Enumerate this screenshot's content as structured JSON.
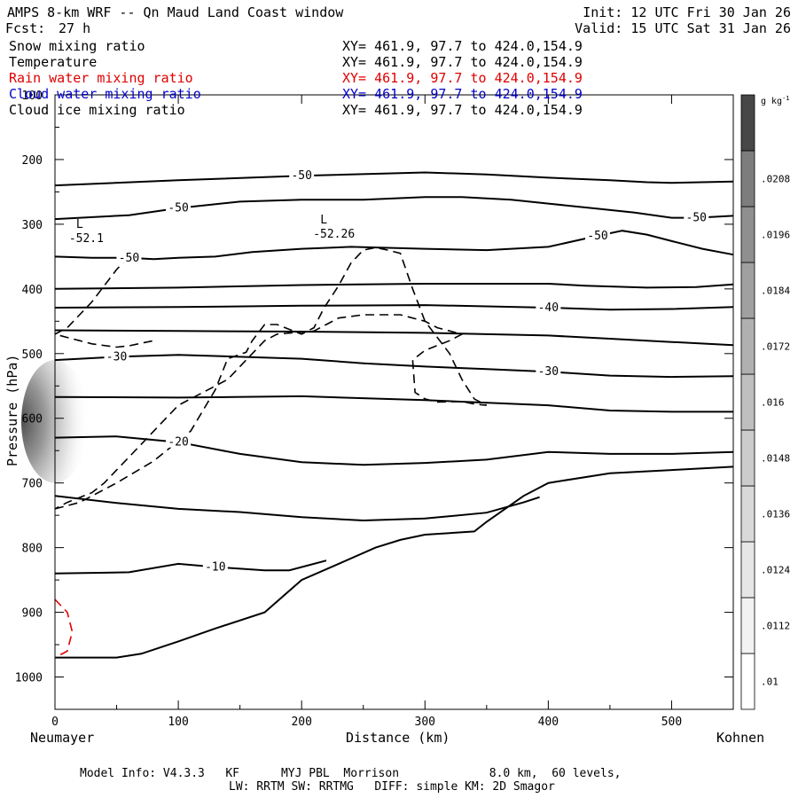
{
  "header": {
    "title": "AMPS 8-km WRF -- Qn Maud Land Coast window",
    "fcst_label": "Fcst:",
    "fcst_value": "27 h",
    "init": "Init: 12 UTC Fri 30 Jan 26",
    "valid": "Valid: 15 UTC Sat 31 Jan 26"
  },
  "fields": [
    {
      "name": "Snow mixing ratio",
      "xy": "XY= 461.9, 97.7 to 424.0,154.9",
      "color": "#000000"
    },
    {
      "name": "Temperature",
      "xy": "XY= 461.9, 97.7 to 424.0,154.9",
      "color": "#000000"
    },
    {
      "name": "Rain water mixing ratio",
      "xy": "XY= 461.9, 97.7 to 424.0,154.9",
      "color": "#e00000"
    },
    {
      "name": "Cloud water mixing ratio",
      "xy": "XY= 461.9, 97.7 to 424.0,154.9",
      "color": "#0000cc"
    },
    {
      "name": "Cloud ice mixing ratio",
      "xy": "XY= 461.9, 97.7 to 424.0,154.9",
      "color": "#000000"
    }
  ],
  "footer": {
    "line1": "Model Info: V4.3.3   KF      MYJ PBL  Morrison             8.0 km,  60 levels,",
    "line2": "LW: RRTM SW: RRTMG   DIFF: simple KM: 2D Smagor"
  },
  "endpoints": {
    "left": "Neumayer",
    "right": "Kohnen"
  },
  "chart_data": {
    "type": "line",
    "xlabel": "Distance (km)",
    "ylabel": "Pressure (hPa)",
    "xlim": [
      0,
      550
    ],
    "ylim": [
      1050,
      100
    ],
    "y_scale": "linear, inverted",
    "x_ticks": [
      0,
      100,
      200,
      300,
      400,
      500
    ],
    "y_ticks": [
      100,
      200,
      300,
      400,
      500,
      600,
      700,
      800,
      900,
      1000
    ],
    "colorbar": {
      "unit": "g kg-1",
      "labels": [
        ".01",
        ".0112",
        ".0124",
        ".0136",
        ".0148",
        ".016",
        ".0172",
        ".0184",
        ".0196",
        ".0208"
      ],
      "levels": [
        0.01,
        0.0112,
        0.0124,
        0.0136,
        0.0148,
        0.016,
        0.0172,
        0.0184,
        0.0196,
        0.0208,
        0.022
      ],
      "colors": [
        "#ffffff",
        "#f2f2f2",
        "#e6e6e6",
        "#d9d9d9",
        "#cccccc",
        "#bfbfbf",
        "#b0b0b0",
        "#a0a0a0",
        "#8f8f8f",
        "#7d7d7d",
        "#474747"
      ]
    },
    "snow_shading": {
      "x": 0,
      "p_top": 510,
      "p_bottom": 700,
      "max": 0.02
    },
    "temperature_contours": [
      {
        "label": "-50",
        "points": [
          [
            0,
            240
          ],
          [
            100,
            232
          ],
          [
            200,
            225
          ],
          [
            300,
            220
          ],
          [
            350,
            223
          ],
          [
            400,
            228
          ],
          [
            450,
            232
          ],
          [
            480,
            235
          ],
          [
            500,
            236
          ],
          [
            550,
            234
          ]
        ]
      },
      {
        "label": "-50",
        "points": [
          [
            0,
            292
          ],
          [
            60,
            286
          ],
          [
            100,
            275
          ],
          [
            150,
            265
          ],
          [
            200,
            262
          ],
          [
            250,
            262
          ],
          [
            300,
            258
          ],
          [
            330,
            258
          ],
          [
            370,
            262
          ],
          [
            400,
            268
          ],
          [
            440,
            276
          ],
          [
            470,
            282
          ],
          [
            500,
            290
          ],
          [
            520,
            290
          ],
          [
            550,
            287
          ]
        ]
      },
      {
        "label": "-50",
        "points": [
          [
            0,
            350
          ],
          [
            30,
            352
          ],
          [
            60,
            352
          ],
          [
            80,
            354
          ],
          [
            100,
            352
          ],
          [
            130,
            350
          ],
          [
            160,
            343
          ],
          [
            200,
            338
          ],
          [
            240,
            335
          ],
          [
            300,
            338
          ],
          [
            350,
            340
          ],
          [
            400,
            335
          ],
          [
            440,
            318
          ],
          [
            460,
            310
          ],
          [
            480,
            316
          ],
          [
            500,
            326
          ],
          [
            525,
            338
          ],
          [
            550,
            347
          ]
        ]
      },
      {
        "points": [
          [
            0,
            400
          ],
          [
            100,
            398
          ],
          [
            200,
            394
          ],
          [
            300,
            392
          ],
          [
            400,
            392
          ],
          [
            430,
            395
          ],
          [
            480,
            398
          ],
          [
            520,
            397
          ],
          [
            550,
            393
          ]
        ]
      },
      {
        "label": "-40",
        "points": [
          [
            0,
            429
          ],
          [
            100,
            428
          ],
          [
            200,
            426
          ],
          [
            300,
            425
          ],
          [
            350,
            427
          ],
          [
            400,
            429
          ],
          [
            450,
            432
          ],
          [
            500,
            431
          ],
          [
            550,
            428
          ]
        ]
      },
      {
        "points": [
          [
            0,
            464
          ],
          [
            100,
            465
          ],
          [
            200,
            466
          ],
          [
            300,
            468
          ],
          [
            400,
            472
          ],
          [
            450,
            477
          ],
          [
            500,
            482
          ],
          [
            550,
            487
          ]
        ]
      },
      {
        "label": "-30",
        "points": [
          [
            0,
            510
          ],
          [
            50,
            505
          ],
          [
            100,
            502
          ],
          [
            200,
            508
          ],
          [
            250,
            515
          ],
          [
            300,
            520
          ],
          [
            350,
            524
          ],
          [
            400,
            528
          ],
          [
            450,
            534
          ],
          [
            500,
            536
          ],
          [
            550,
            535
          ]
        ]
      },
      {
        "points": [
          [
            0,
            567
          ],
          [
            100,
            568
          ],
          [
            200,
            566
          ],
          [
            300,
            572
          ],
          [
            400,
            580
          ],
          [
            450,
            588
          ],
          [
            500,
            590
          ],
          [
            550,
            590
          ]
        ]
      },
      {
        "label": "-20",
        "points": [
          [
            0,
            630
          ],
          [
            50,
            628
          ],
          [
            100,
            637
          ],
          [
            150,
            655
          ],
          [
            200,
            668
          ],
          [
            250,
            672
          ],
          [
            300,
            669
          ],
          [
            350,
            664
          ],
          [
            400,
            652
          ],
          [
            450,
            655
          ],
          [
            500,
            655
          ],
          [
            550,
            652
          ]
        ]
      },
      {
        "points": [
          [
            0,
            720
          ],
          [
            50,
            731
          ],
          [
            100,
            740
          ],
          [
            150,
            745
          ],
          [
            200,
            753
          ],
          [
            250,
            758
          ],
          [
            300,
            755
          ],
          [
            350,
            746
          ],
          [
            380,
            730
          ],
          [
            393,
            722
          ]
        ]
      },
      {
        "label": "-10",
        "points": [
          [
            0,
            840
          ],
          [
            60,
            838
          ],
          [
            100,
            825
          ],
          [
            130,
            830
          ],
          [
            170,
            835
          ],
          [
            190,
            835
          ],
          [
            220,
            820
          ]
        ]
      }
    ],
    "terrain": [
      [
        0,
        970
      ],
      [
        50,
        970
      ],
      [
        70,
        964
      ],
      [
        100,
        945
      ],
      [
        130,
        925
      ],
      [
        170,
        900
      ],
      [
        200,
        850
      ],
      [
        230,
        825
      ],
      [
        260,
        800
      ],
      [
        280,
        788
      ],
      [
        300,
        780
      ],
      [
        340,
        775
      ],
      [
        350,
        760
      ],
      [
        380,
        720
      ],
      [
        400,
        700
      ],
      [
        450,
        685
      ],
      [
        500,
        680
      ],
      [
        550,
        675
      ]
    ],
    "extremes": [
      {
        "label": "L",
        "value": "-52.1",
        "x": 20,
        "p": 314
      },
      {
        "label": "L",
        "value": "-52.26",
        "x": 218,
        "p": 307
      }
    ],
    "cloud_ice_dashed": [
      [
        [
          0,
          740
        ],
        [
          20,
          730
        ],
        [
          50,
          700
        ],
        [
          80,
          666
        ],
        [
          110,
          620
        ],
        [
          130,
          556
        ],
        [
          140,
          508
        ],
        [
          155,
          498
        ],
        [
          160,
          480
        ],
        [
          170,
          455
        ],
        [
          180,
          455
        ],
        [
          200,
          470
        ],
        [
          210,
          460
        ],
        [
          218,
          430
        ],
        [
          230,
          395
        ],
        [
          240,
          360
        ],
        [
          250,
          340
        ],
        [
          260,
          336
        ],
        [
          270,
          340
        ],
        [
          280,
          345
        ],
        [
          290,
          400
        ],
        [
          300,
          450
        ],
        [
          320,
          500
        ],
        [
          330,
          540
        ],
        [
          340,
          570
        ],
        [
          350,
          580
        ],
        [
          340,
          578
        ],
        [
          330,
          574
        ],
        [
          310,
          575
        ],
        [
          300,
          570
        ],
        [
          292,
          560
        ],
        [
          290,
          510
        ],
        [
          300,
          495
        ],
        [
          320,
          480
        ],
        [
          330,
          470
        ],
        [
          310,
          460
        ],
        [
          300,
          450
        ],
        [
          280,
          440
        ],
        [
          250,
          440
        ],
        [
          230,
          445
        ],
        [
          210,
          465
        ],
        [
          180,
          470
        ],
        [
          170,
          480
        ],
        [
          160,
          500
        ],
        [
          150,
          520
        ],
        [
          140,
          540
        ],
        [
          120,
          560
        ],
        [
          100,
          580
        ],
        [
          90,
          600
        ],
        [
          80,
          620
        ],
        [
          70,
          640
        ],
        [
          60,
          660
        ],
        [
          50,
          680
        ],
        [
          40,
          700
        ],
        [
          30,
          715
        ],
        [
          10,
          730
        ],
        [
          0,
          740
        ]
      ],
      [
        [
          60,
          350
        ],
        [
          50,
          370
        ],
        [
          40,
          395
        ],
        [
          30,
          420
        ],
        [
          20,
          440
        ],
        [
          10,
          460
        ],
        [
          0,
          470
        ],
        [
          10,
          475
        ],
        [
          20,
          480
        ],
        [
          30,
          485
        ],
        [
          50,
          490
        ],
        [
          60,
          488
        ],
        [
          70,
          484
        ],
        [
          80,
          480
        ]
      ]
    ],
    "rain_dashed": [
      [
        [
          0,
          880
        ],
        [
          10,
          900
        ],
        [
          14,
          930
        ],
        [
          10,
          960
        ],
        [
          0,
          970
        ]
      ]
    ]
  }
}
